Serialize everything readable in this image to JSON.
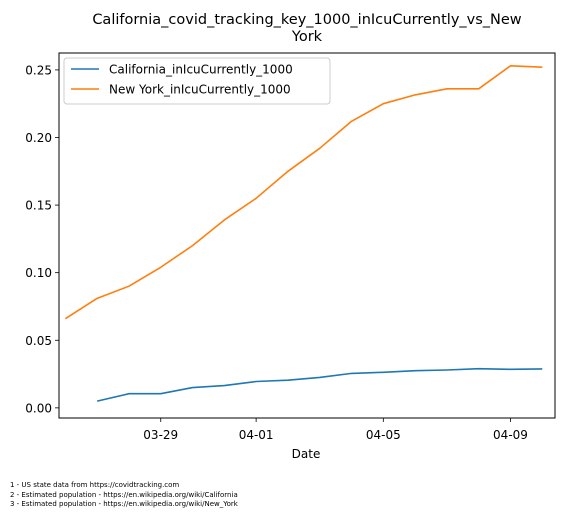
{
  "chart_data": {
    "type": "line",
    "title": "California_covid_tracking_key_1000_inIcuCurrently_vs_New York",
    "title_lines": [
      "California_covid_tracking_key_1000_inIcuCurrently_vs_New",
      "York"
    ],
    "xlabel": "Date",
    "ylabel": "",
    "x_ticks": [
      "03-29",
      "04-01",
      "04-05",
      "04-09"
    ],
    "y_ticks": [
      "0.00",
      "0.05",
      "0.10",
      "0.15",
      "0.20",
      "0.25"
    ],
    "ylim": [
      -0.0075,
      0.2625
    ],
    "xlim": [
      "2020-03-25",
      "2020-04-10"
    ],
    "legend_position": "top-left",
    "grid": false,
    "series": [
      {
        "name": "California_inIcuCurrently_1000",
        "color": "#1f77b4",
        "points": [
          [
            "2020-03-27",
            0.005
          ],
          [
            "2020-03-28",
            0.0105
          ],
          [
            "2020-03-29",
            0.0105
          ],
          [
            "2020-03-30",
            0.015
          ],
          [
            "2020-03-31",
            0.0165
          ],
          [
            "2020-04-01",
            0.0195
          ],
          [
            "2020-04-02",
            0.0205
          ],
          [
            "2020-04-03",
            0.0225
          ],
          [
            "2020-04-04",
            0.0255
          ],
          [
            "2020-04-05",
            0.0263
          ],
          [
            "2020-04-06",
            0.0275
          ],
          [
            "2020-04-07",
            0.028
          ],
          [
            "2020-04-08",
            0.029
          ],
          [
            "2020-04-09",
            0.0285
          ],
          [
            "2020-04-10",
            0.0288
          ]
        ]
      },
      {
        "name": "New York_inIcuCurrently_1000",
        "color": "#ff7f0e",
        "points": [
          [
            "2020-03-26",
            0.066
          ],
          [
            "2020-03-27",
            0.081
          ],
          [
            "2020-03-28",
            0.09
          ],
          [
            "2020-03-29",
            0.104
          ],
          [
            "2020-03-30",
            0.12
          ],
          [
            "2020-03-31",
            0.139
          ],
          [
            "2020-04-01",
            0.155
          ],
          [
            "2020-04-02",
            0.175
          ],
          [
            "2020-04-03",
            0.192
          ],
          [
            "2020-04-04",
            0.212
          ],
          [
            "2020-04-05",
            0.225
          ],
          [
            "2020-04-06",
            0.2315
          ],
          [
            "2020-04-07",
            0.236
          ],
          [
            "2020-04-08",
            0.236
          ],
          [
            "2020-04-09",
            0.253
          ],
          [
            "2020-04-10",
            0.252
          ]
        ]
      }
    ]
  },
  "footnotes": [
    "1 - US state data from https://covidtracking.com",
    "2 - Estimated population - https://en.wikipedia.org/wiki/California",
    "3 - Estimated population - https://en.wikipedia.org/wiki/New_York"
  ]
}
